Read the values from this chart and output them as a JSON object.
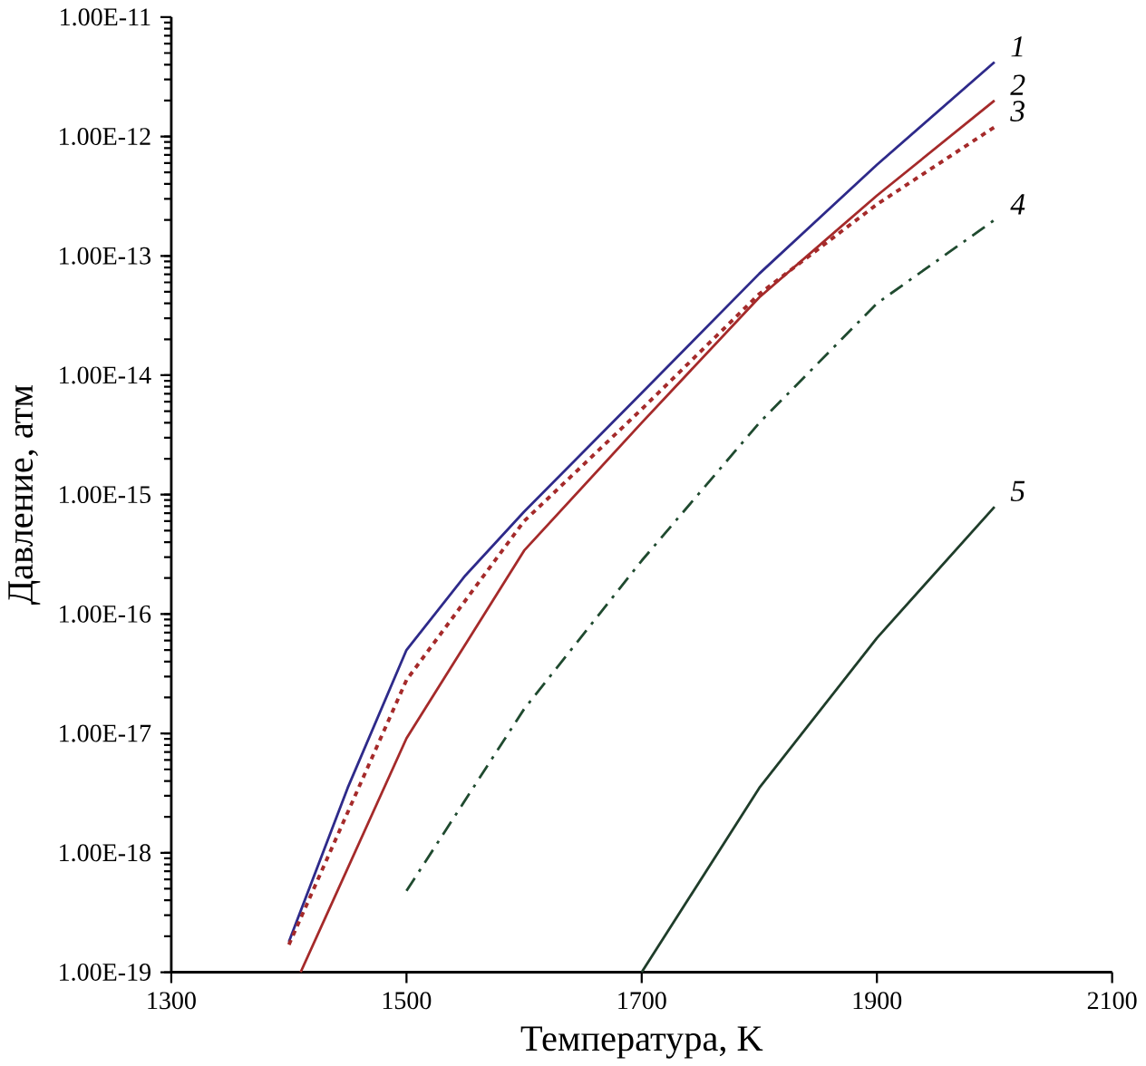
{
  "chart_data": {
    "type": "line",
    "xlabel": "Температура, K",
    "ylabel": "Давление, атм",
    "log": "y",
    "xlim": [
      1300,
      2100
    ],
    "xticks": [
      1300,
      1500,
      1700,
      1900,
      2100
    ],
    "ylim": [
      1e-19,
      1e-11
    ],
    "yticks": [
      {
        "value": 1e-19,
        "label": "1.00E-19"
      },
      {
        "value": 1e-18,
        "label": "1.00E-18"
      },
      {
        "value": 1e-17,
        "label": "1.00E-17"
      },
      {
        "value": 1e-16,
        "label": "1.00E-16"
      },
      {
        "value": 1e-15,
        "label": "1.00E-15"
      },
      {
        "value": 1e-14,
        "label": "1.00E-14"
      },
      {
        "value": 1e-13,
        "label": "1.00E-13"
      },
      {
        "value": 1e-12,
        "label": "1.00E-12"
      },
      {
        "value": 1e-11,
        "label": "1.00E-11"
      }
    ],
    "series": [
      {
        "name": "1",
        "color": "#2e2a8a",
        "line_style": "solid",
        "x": [
          1400,
          1450,
          1500,
          1550,
          1600,
          1700,
          1800,
          1900,
          2000
        ],
        "values": [
          1.8e-19,
          3.5e-18,
          5e-17,
          2.1e-16,
          7.2e-16,
          7.1e-15,
          7.1e-14,
          5.8e-13,
          4.2e-12
        ]
      },
      {
        "name": "2",
        "color": "#a52a2a",
        "line_style": "solid",
        "x": [
          1410,
          1500,
          1600,
          1700,
          1800,
          1900,
          2000
        ],
        "values": [
          1e-19,
          9.1e-18,
          3.4e-16,
          4e-15,
          4.5e-14,
          3.2e-13,
          2e-12
        ]
      },
      {
        "name": "3",
        "color": "#a52a2a",
        "line_style": "dotted",
        "x": [
          1400,
          1500,
          1600,
          1700,
          1800,
          1900,
          2000
        ],
        "values": [
          1.7e-19,
          2.8e-17,
          6e-16,
          5.2e-15,
          4.8e-14,
          2.7e-13,
          1.2e-12
        ]
      },
      {
        "name": "4",
        "color": "#1f4a2f",
        "line_style": "dashdot",
        "x": [
          1500,
          1600,
          1700,
          1800,
          1900,
          2000
        ],
        "values": [
          4.8e-19,
          1.6e-17,
          2.8e-16,
          4e-15,
          4e-14,
          2e-13
        ]
      },
      {
        "name": "5",
        "color": "#1f3d2a",
        "line_style": "solid",
        "x": [
          1700,
          1800,
          1900,
          2000
        ],
        "values": [
          1e-19,
          3.5e-18,
          6.3e-17,
          7.9e-16
        ]
      }
    ]
  }
}
